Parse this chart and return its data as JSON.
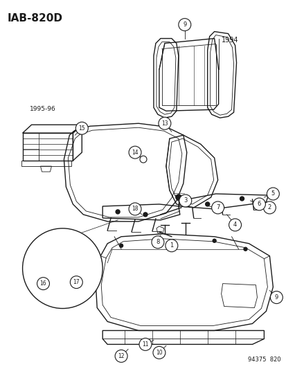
{
  "title": "IAB-820D",
  "background_color": "#ffffff",
  "line_color": "#1a1a1a",
  "fig_width": 4.14,
  "fig_height": 5.33,
  "dpi": 100,
  "watermark": "94375  820",
  "year_1994": "1994",
  "year_1995": "1995-96"
}
